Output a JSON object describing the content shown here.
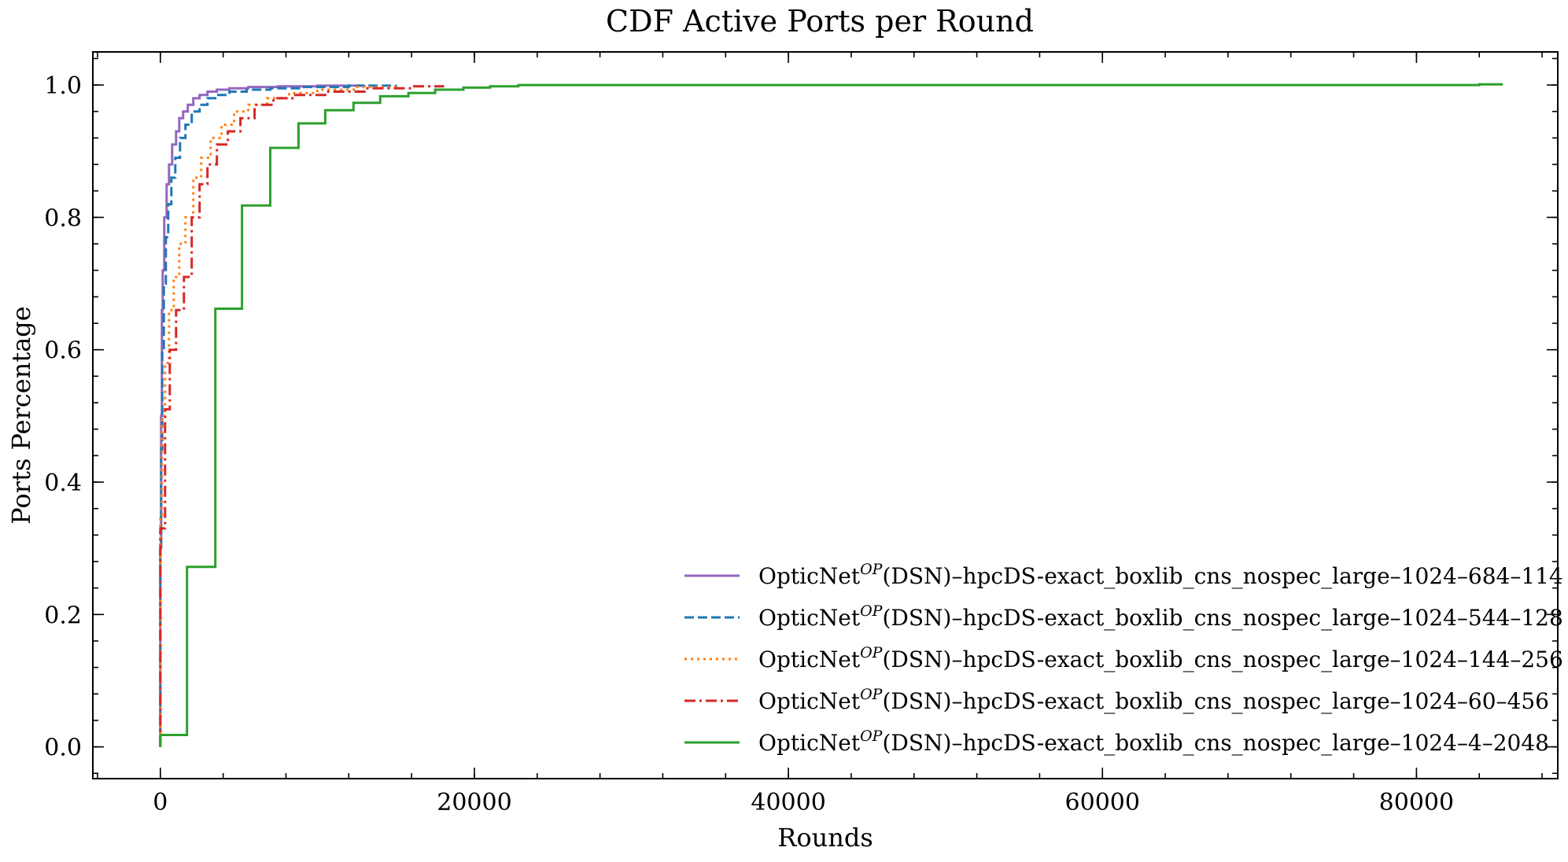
{
  "chart_data": {
    "type": "line",
    "title": "CDF Active Ports per Round",
    "xlabel": "Rounds",
    "ylabel": "Ports Percentage",
    "xlim": [
      -4300,
      89000
    ],
    "ylim": [
      -0.048,
      1.05
    ],
    "xticks": [
      0,
      20000,
      40000,
      60000,
      80000
    ],
    "xtick_labels": [
      "0",
      "20000",
      "40000",
      "60000",
      "80000"
    ],
    "yticks": [
      0.0,
      0.2,
      0.4,
      0.6,
      0.8,
      1.0
    ],
    "ytick_labels": [
      "0.0",
      "0.2",
      "0.4",
      "0.6",
      "0.8",
      "1.0"
    ],
    "step": "post",
    "grid": false,
    "legend_position": "lower right",
    "legend_prefix": "OpticNet",
    "legend_sup": "OP",
    "series": [
      {
        "name": "(DSN)–hpcDS-exact_boxlib_cns_nospec_large–1024–684–114",
        "color": "#9467bd",
        "dash": "solid",
        "x": [
          0,
          0,
          0,
          50,
          100,
          150,
          250,
          400,
          550,
          750,
          1000,
          1200,
          1450,
          1750,
          2100,
          2500,
          3000,
          3600,
          4400,
          5600,
          7500,
          10000,
          13000
        ],
        "y": [
          0,
          0.05,
          0.3,
          0.5,
          0.66,
          0.72,
          0.8,
          0.85,
          0.88,
          0.91,
          0.93,
          0.95,
          0.96,
          0.97,
          0.98,
          0.985,
          0.99,
          0.993,
          0.995,
          0.997,
          0.998,
          0.999,
          1.0
        ]
      },
      {
        "name": "(DSN)–hpcDS-exact_boxlib_cns_nospec_large–1024–544–128",
        "color": "#1f77b4",
        "dash": "dashed",
        "x": [
          0,
          0,
          0,
          50,
          120,
          220,
          350,
          500,
          700,
          950,
          1250,
          1600,
          2000,
          2500,
          3000,
          3600,
          4400,
          5500,
          7000,
          9000,
          12000,
          15000
        ],
        "y": [
          0,
          0.08,
          0.3,
          0.45,
          0.6,
          0.7,
          0.77,
          0.82,
          0.86,
          0.89,
          0.92,
          0.94,
          0.96,
          0.97,
          0.98,
          0.985,
          0.99,
          0.993,
          0.995,
          0.997,
          0.999,
          1.0
        ]
      },
      {
        "name": "(DSN)–hpcDS-exact_boxlib_cns_nospec_large–1024–144–256",
        "color": "#ff7f0e",
        "dash": "dotted",
        "x": [
          0,
          0,
          0,
          100,
          300,
          550,
          850,
          1200,
          1600,
          2100,
          2600,
          3200,
          3900,
          4700,
          5600,
          6800,
          8200,
          10000,
          12500,
          15000
        ],
        "y": [
          0,
          0.02,
          0.35,
          0.5,
          0.58,
          0.66,
          0.71,
          0.76,
          0.8,
          0.86,
          0.89,
          0.92,
          0.94,
          0.96,
          0.97,
          0.98,
          0.988,
          0.993,
          0.997,
          1.0
        ]
      },
      {
        "name": "(DSN)–hpcDS-exact_boxlib_cns_nospec_large–1024–60–456",
        "color": "#d62728",
        "dash": "dashdot",
        "x": [
          0,
          0,
          0,
          300,
          600,
          1000,
          1500,
          2000,
          2500,
          3000,
          3600,
          4300,
          5100,
          6000,
          7200,
          8600,
          10500,
          13000,
          16000,
          18000
        ],
        "y": [
          0,
          0.01,
          0.33,
          0.51,
          0.6,
          0.66,
          0.71,
          0.8,
          0.85,
          0.88,
          0.91,
          0.93,
          0.95,
          0.97,
          0.98,
          0.985,
          0.99,
          0.995,
          0.998,
          1.0
        ]
      },
      {
        "name": "(DSN)–hpcDS-exact_boxlib_cns_nospec_large–1024–4–2048",
        "color": "#2ca02c",
        "dash": "solid",
        "x": [
          0,
          0,
          1700,
          3500,
          5200,
          7000,
          8800,
          10500,
          12300,
          14000,
          15800,
          17500,
          19300,
          21000,
          22800,
          84000,
          85500
        ],
        "y": [
          0,
          0.018,
          0.272,
          0.662,
          0.818,
          0.905,
          0.942,
          0.962,
          0.973,
          0.983,
          0.988,
          0.993,
          0.996,
          0.998,
          1.0,
          1.001,
          1.001
        ]
      }
    ]
  }
}
